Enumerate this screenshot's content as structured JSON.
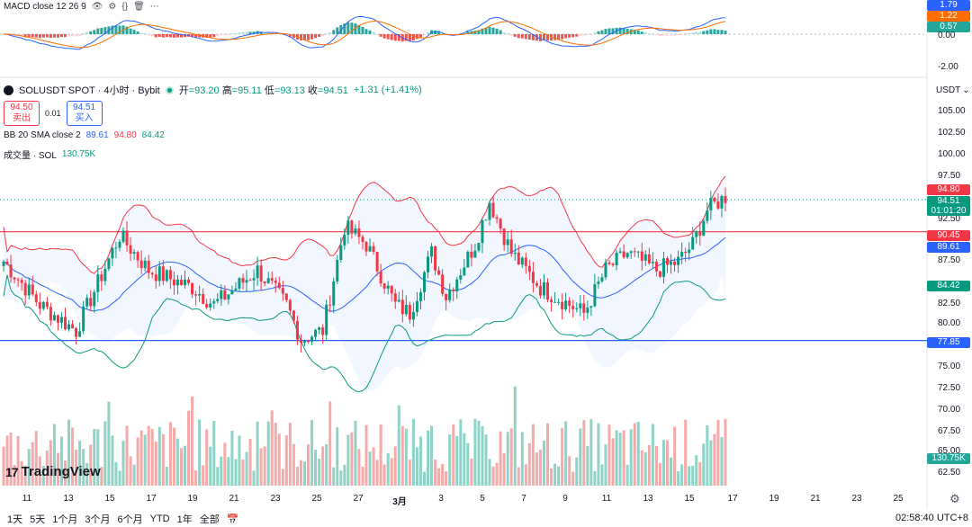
{
  "macd": {
    "title": "MACD close 12 26 9",
    "tags": [
      {
        "label": "1.79",
        "color": "#2962ff"
      },
      {
        "label": "1.22",
        "color": "#ff6d00"
      },
      {
        "label": "0.57",
        "color": "#26a69a"
      }
    ],
    "ticks": [
      "0.00",
      "-2.00"
    ]
  },
  "symbol": {
    "title": "SOLUSDT SPOT · 4小时 · Bybit",
    "open_label": "开",
    "open": "=93.20",
    "high_label": "高",
    "high": "=95.11",
    "low_label": "低",
    "low": "=93.13",
    "close_label": "收",
    "close": "=94.51",
    "change": "+1.31 (+1.41%)"
  },
  "bidask": {
    "sell_price": "94.50",
    "sell_label": "卖出",
    "spread": "0.01",
    "buy_price": "94.51",
    "buy_label": "买入"
  },
  "bb": {
    "label": "BB 20 SMA close 2",
    "basis": "89.61",
    "upper": "94.80",
    "lower": "84.42"
  },
  "volume": {
    "label": "成交量 · SOL",
    "value": "130.75K"
  },
  "currency": "USDT",
  "price_axis": [
    "105.00",
    "102.50",
    "100.00",
    "97.50",
    "92.50",
    "87.50",
    "82.50",
    "80.00",
    "75.00",
    "72.50",
    "70.00",
    "67.50",
    "65.00",
    "62.50"
  ],
  "price_tags": [
    {
      "label": "94.80",
      "color": "#f23645"
    },
    {
      "label": "94.51",
      "sub": "01:01:20",
      "color": "#089981"
    },
    {
      "label": "90.45",
      "color": "#f23645"
    },
    {
      "label": "89.61",
      "color": "#2962ff"
    },
    {
      "label": "84.42",
      "color": "#089981"
    },
    {
      "label": "77.85",
      "color": "#2962ff"
    },
    {
      "label": "130.75K",
      "color": "#26a69a"
    }
  ],
  "horizontal_lines": [
    {
      "price": 90.45,
      "color": "#f23645"
    },
    {
      "price": 77.85,
      "color": "#2962ff"
    }
  ],
  "time_axis": [
    "11",
    "13",
    "15",
    "17",
    "19",
    "21",
    "23",
    "25",
    "27",
    "3月",
    "3",
    "5",
    "7",
    "9",
    "11",
    "13",
    "15",
    "17",
    "19",
    "21",
    "23",
    "25"
  ],
  "range_buttons": [
    "1天",
    "5天",
    "1个月",
    "3个月",
    "6个月",
    "YTD",
    "1年",
    "全部"
  ],
  "calendar_icon": "calendar-icon",
  "clock": "02:58:40 UTC+8",
  "logo_text": "TradingView",
  "colors": {
    "up": "#089981",
    "down": "#f23645",
    "vol_up": "#8fd3c8",
    "vol_down": "#f6a9a9"
  }
}
